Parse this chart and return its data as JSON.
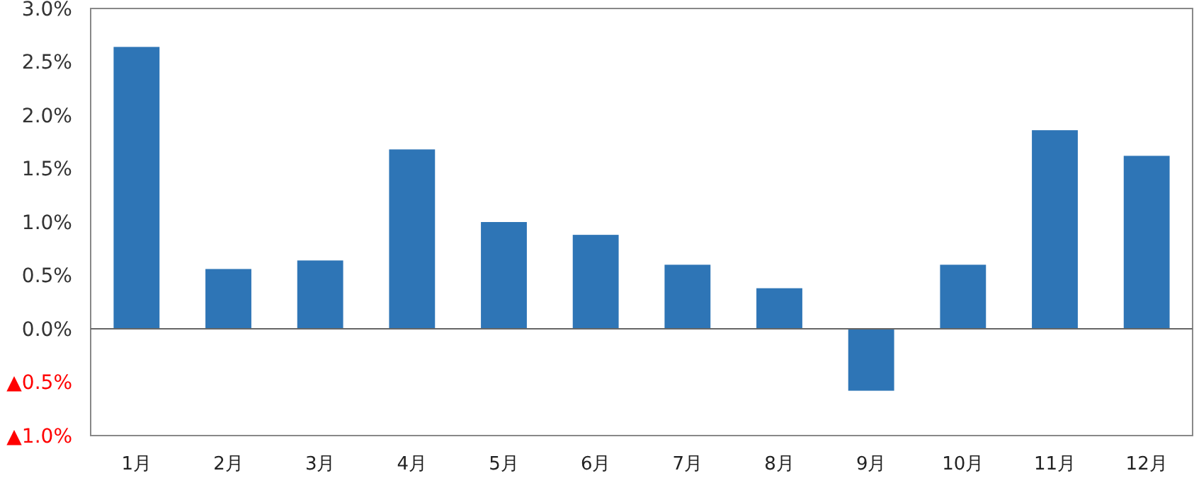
{
  "chart_data": {
    "type": "bar",
    "categories": [
      "1月",
      "2月",
      "3月",
      "4月",
      "5月",
      "6月",
      "7月",
      "8月",
      "9月",
      "10月",
      "11月",
      "12月"
    ],
    "values": [
      2.64,
      0.56,
      0.64,
      1.68,
      1.0,
      0.88,
      0.6,
      0.38,
      -0.58,
      0.6,
      1.86,
      1.62
    ],
    "color": "#2e75b6",
    "ylim": [
      -1.0,
      3.0
    ],
    "yticks": [
      {
        "value": -1.0,
        "label": "▲1.0%"
      },
      {
        "value": -0.5,
        "label": "▲0.5%"
      },
      {
        "value": 0,
        "label": "0.0%"
      },
      {
        "value": 0.5,
        "label": "0.5%"
      },
      {
        "value": 1.0,
        "label": "1.0%"
      },
      {
        "value": 1.5,
        "label": "1.5%"
      },
      {
        "value": 2.0,
        "label": "2.0%"
      },
      {
        "value": 2.5,
        "label": "2.5%"
      },
      {
        "value": 3.0,
        "label": "3.0%"
      }
    ]
  }
}
